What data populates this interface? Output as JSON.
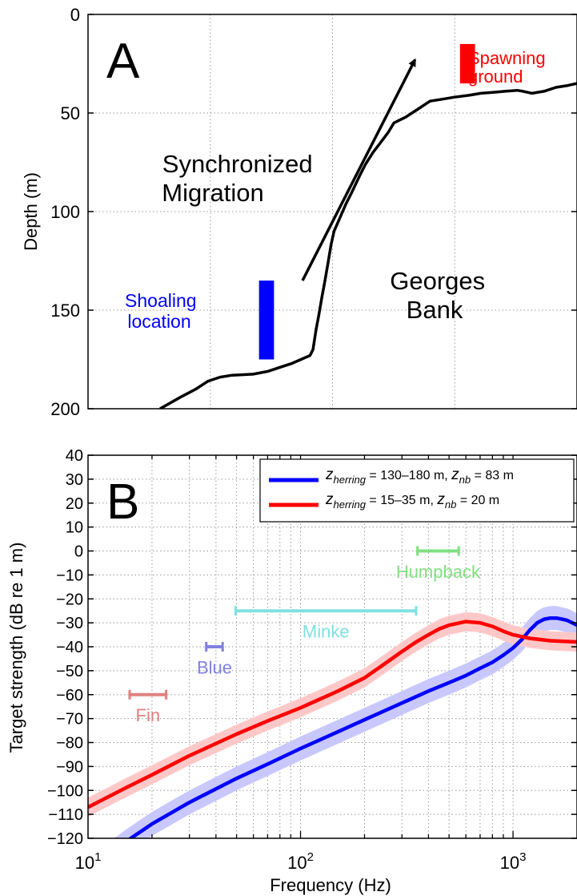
{
  "chart_data": [
    {
      "panel": "A",
      "type": "line",
      "ylabel": "Depth (m)",
      "ylim": [
        0,
        200
      ],
      "y_inverted": true,
      "yticks": [
        0,
        50,
        100,
        150,
        200
      ],
      "ytick_labels": [
        "0",
        "50",
        "100",
        "150",
        "200"
      ],
      "grid": true,
      "series": [
        {
          "type": "line",
          "color": "#000000",
          "points": [
            [
              0.24,
              200
            ],
            [
              0.31,
              194
            ],
            [
              0.36,
              190
            ],
            [
              0.4,
              186
            ],
            [
              0.44,
              184
            ],
            [
              0.48,
              183
            ],
            [
              0.55,
              182.5
            ],
            [
              0.6,
              181
            ],
            [
              0.64,
              179
            ],
            [
              0.68,
              177
            ],
            [
              0.71,
              175
            ],
            [
              0.74,
              173
            ],
            [
              0.75,
              170
            ],
            [
              0.76,
              160
            ],
            [
              0.77,
              152
            ],
            [
              0.78,
              143
            ],
            [
              0.79,
              135
            ],
            [
              0.8,
              126
            ],
            [
              0.81,
              117
            ],
            [
              0.82,
              110
            ],
            [
              0.84,
              103
            ],
            [
              0.86,
              96
            ],
            [
              0.88,
              90
            ],
            [
              0.905,
              82
            ],
            [
              0.925,
              76
            ],
            [
              0.95,
              70
            ],
            [
              0.975,
              65
            ],
            [
              1.0,
              60
            ],
            [
              1.02,
              55
            ],
            [
              1.06,
              52
            ],
            [
              1.1,
              48
            ],
            [
              1.14,
              44
            ],
            [
              1.18,
              43
            ],
            [
              1.22,
              42
            ],
            [
              1.27,
              41
            ],
            [
              1.31,
              40
            ],
            [
              1.35,
              39.5
            ],
            [
              1.39,
              39
            ],
            [
              1.43,
              38.5
            ],
            [
              1.45,
              39
            ],
            [
              1.48,
              40
            ],
            [
              1.52,
              39
            ],
            [
              1.56,
              37
            ],
            [
              1.6,
              36
            ],
            [
              1.63,
              35
            ]
          ]
        }
      ],
      "markers": [
        {
          "shape": "rect",
          "color": "#0000ff",
          "x": [
            0.57,
            0.62
          ],
          "y": [
            135,
            175
          ]
        },
        {
          "shape": "rect",
          "color": "#ff0000",
          "x": [
            1.24,
            1.29
          ],
          "y": [
            15,
            35
          ]
        }
      ],
      "arrow": {
        "color": "#000000",
        "from": [
          0.715,
          135
        ],
        "to": [
          1.09,
          23
        ]
      },
      "annotations": [
        {
          "text": "A",
          "color": "#000000",
          "role": "panel-label"
        },
        {
          "lines": [
            "Synchronized",
            "Migration"
          ],
          "color": "#000000"
        },
        {
          "lines": [
            "Georges",
            "Bank"
          ],
          "color": "#000000"
        },
        {
          "lines": [
            "Shoaling",
            "location"
          ],
          "color": "#0000ff"
        },
        {
          "lines": [
            "Spawning",
            "ground"
          ],
          "color": "#ff0000"
        }
      ]
    },
    {
      "panel": "B",
      "type": "line",
      "xlabel": "Frequency (Hz)",
      "ylabel": "Target strength (dB re 1 m)",
      "xscale": "log",
      "xlim": [
        10,
        2000
      ],
      "ylim": [
        -120,
        40
      ],
      "xticks": [
        10,
        100,
        1000
      ],
      "xtick_labels": [
        {
          "base": "10",
          "exp": "1"
        },
        {
          "base": "10",
          "exp": "2"
        },
        {
          "base": "10",
          "exp": "3"
        }
      ],
      "yticks": [
        -120,
        -110,
        -100,
        -90,
        -80,
        -70,
        -60,
        -50,
        -40,
        -30,
        -20,
        -10,
        0,
        10,
        20,
        30,
        40
      ],
      "ytick_labels": [
        "−120",
        "−110",
        "−100",
        "−90",
        "−80",
        "−70",
        "−60",
        "−50",
        "−40",
        "−30",
        "−20",
        "−10",
        "0",
        "10",
        "20",
        "30",
        "40"
      ],
      "grid": true,
      "legend_position": "top-right",
      "series": [
        {
          "legend": {
            "z1_sym": "z",
            "z1_sub": "herring",
            "z1_val": " = 130–180 m,  ",
            "z2_sym": "z",
            "z2_sub": "nb",
            "z2_val": " = 83 m"
          },
          "color": "#0000ff",
          "band_color": "#c8c8ff",
          "band_halfwidth": 5,
          "x": [
            10,
            15,
            20,
            30,
            50,
            70,
            100,
            150,
            200,
            300,
            400,
            500,
            600,
            700,
            800,
            900,
            1000,
            1100,
            1200,
            1300,
            1400,
            1500,
            1600,
            1700,
            1800,
            1900,
            2000
          ],
          "y": [
            -133,
            -121.5,
            -114,
            -105,
            -95,
            -89,
            -82.5,
            -75.5,
            -70.5,
            -63.5,
            -58.5,
            -55,
            -52,
            -49,
            -46.5,
            -43.5,
            -40.5,
            -37,
            -33,
            -30,
            -28.5,
            -28,
            -28,
            -28.5,
            -29,
            -30,
            -31
          ],
          "band_lower": [
            -138,
            -126.5,
            -119,
            -110,
            -100,
            -94,
            -87.5,
            -80.5,
            -75.5,
            -68.5,
            -63.5,
            -60,
            -57,
            -54,
            -51.5,
            -48.5,
            -45.5,
            -42,
            -38,
            -35,
            -33.5,
            -33,
            -33,
            -33.5,
            -34,
            -35,
            -36
          ],
          "band_upper": [
            -128,
            -116.5,
            -109,
            -100,
            -90,
            -84,
            -77.5,
            -70.5,
            -65.5,
            -58.5,
            -53.5,
            -50,
            -47,
            -44,
            -41.5,
            -38.5,
            -35.5,
            -32,
            -28,
            -25,
            -23.5,
            -23,
            -23,
            -23.5,
            -24,
            -25,
            -26
          ]
        },
        {
          "legend": {
            "z1_sym": "z",
            "z1_sub": "herring",
            "z1_val": " = 15–35 m,  ",
            "z2_sym": "z",
            "z2_sub": "nb",
            "z2_val": " = 20 m"
          },
          "color": "#ff0000",
          "band_color": "#ffc8c8",
          "band_halfwidth": 4,
          "x": [
            10,
            15,
            20,
            30,
            50,
            70,
            100,
            150,
            200,
            250,
            300,
            350,
            400,
            450,
            500,
            600,
            700,
            800,
            900,
            1000,
            1200,
            1500,
            2000
          ],
          "y": [
            -107,
            -99,
            -93.5,
            -85.5,
            -76.5,
            -71,
            -65.5,
            -58.5,
            -53,
            -47,
            -42,
            -38,
            -35,
            -32.5,
            -31,
            -29.5,
            -30,
            -31.5,
            -33.5,
            -35,
            -36.5,
            -37.5,
            -38
          ],
          "band_lower": [
            -111,
            -103,
            -97.5,
            -89.5,
            -80.5,
            -75,
            -69.5,
            -62.5,
            -57,
            -51,
            -46,
            -42,
            -39,
            -36.5,
            -35,
            -33.5,
            -34,
            -35.5,
            -37.5,
            -39,
            -40.5,
            -41.5,
            -42
          ],
          "band_upper": [
            -103,
            -95,
            -89.5,
            -81.5,
            -72.5,
            -67,
            -61.5,
            -54.5,
            -49,
            -43,
            -38,
            -34,
            -31,
            -28.5,
            -27,
            -25.5,
            -26,
            -27.5,
            -29.5,
            -31,
            -32.5,
            -33.5,
            -34
          ]
        }
      ],
      "ranges": [
        {
          "label": "Fin",
          "color": "#e08080",
          "x": [
            15.7,
            23.3
          ],
          "y": -60,
          "label_y": -68.5
        },
        {
          "label": "Blue",
          "color": "#8080e0",
          "x": [
            36,
            43
          ],
          "y": -40,
          "label_y": -48.5
        },
        {
          "label": "Minke",
          "color": "#80e0e0",
          "x": [
            49.5,
            350
          ],
          "y": -25,
          "label_y": -33.5
        },
        {
          "label": "Humpback",
          "color": "#80e080",
          "x": [
            355,
            555
          ],
          "y": 0,
          "label_y": -8.5
        }
      ],
      "annotations": [
        {
          "text": "B",
          "color": "#000000",
          "role": "panel-label"
        }
      ]
    }
  ]
}
